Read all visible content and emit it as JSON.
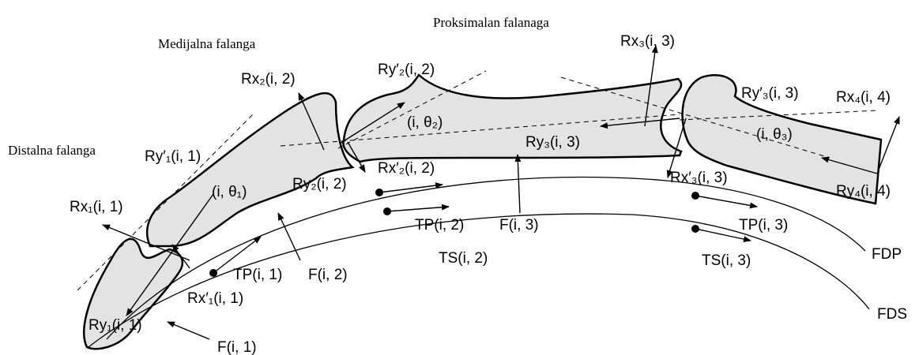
{
  "phalanges": [
    "Proksimalan falanaga",
    "Medijalna falanga",
    "Distalna falanga"
  ],
  "labels": [
    "Rx₃(i, 3)",
    "Rx₂(i, 2)",
    "Ry′₂(i, 2)",
    "Ry′₃(i, 3)",
    "Rx₄(i, 4)",
    "(i, θ₂)",
    "(i, θ₃)",
    "Ry₃(i, 3)",
    "Ry′₁(i, 1)",
    "Rx′₂(i, 2)",
    "Ry₂(i, 2)",
    "(i, θ₁)",
    "Rx′₃(i, 3)",
    "Ry₄(i, 4)",
    "Rx₁(i, 1)",
    "TP(i, 2)",
    "F(i, 3)",
    "TP(i, 3)",
    "TS(i, 2)",
    "TS(i, 3)",
    "TP(i, 1)",
    "F(i, 2)",
    "Rx′₁(i, 1)",
    "Ry₁(i, 1)",
    "F(i, 1)"
  ],
  "tendons": [
    "FDP",
    "FDS"
  ]
}
